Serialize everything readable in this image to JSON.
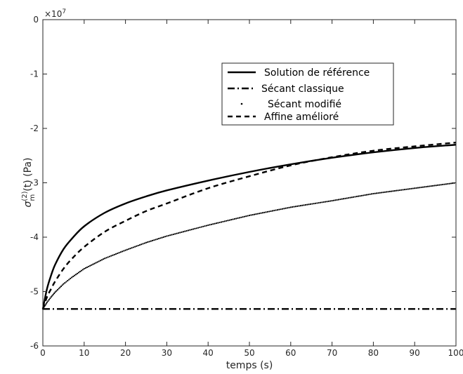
{
  "chart_data": {
    "type": "line",
    "xlabel": "temps (s)",
    "ylabel": {
      "symbol": "σ",
      "superscript": "(2)",
      "subscript": "m",
      "suffix": "(t) (Pa)"
    },
    "exponent_label": "×10",
    "exponent_power": "7",
    "xlim": [
      0,
      100
    ],
    "ylim": [
      -6,
      0
    ],
    "x_ticks": [
      "0",
      "10",
      "20",
      "30",
      "40",
      "50",
      "60",
      "70",
      "80",
      "90",
      "100"
    ],
    "y_ticks": [
      "-6",
      "-5",
      "-4",
      "-3",
      "-2",
      "-1",
      "0"
    ],
    "y_scale_factor": 10000000,
    "grid": false,
    "legend_position": "top-right",
    "x": [
      0,
      1,
      2,
      3,
      5,
      7,
      10,
      15,
      20,
      25,
      30,
      40,
      50,
      60,
      70,
      80,
      90,
      100
    ],
    "series": [
      {
        "name": "Solution de référence",
        "style": "solid",
        "values": [
          -5.32,
          -4.95,
          -4.7,
          -4.5,
          -4.22,
          -4.03,
          -3.8,
          -3.55,
          -3.38,
          -3.25,
          -3.14,
          -2.96,
          -2.8,
          -2.66,
          -2.54,
          -2.44,
          -2.36,
          -2.3
        ]
      },
      {
        "name": "Sécant classique",
        "style": "dashdot",
        "values": [
          -5.32,
          -5.32,
          -5.32,
          -5.32,
          -5.32,
          -5.32,
          -5.32,
          -5.32,
          -5.32,
          -5.32,
          -5.32,
          -5.32,
          -5.32,
          -5.32,
          -5.32,
          -5.32,
          -5.32,
          -5.32
        ]
      },
      {
        "name": "Sécant modifié",
        "style": "dotted",
        "values": [
          -5.32,
          -5.2,
          -5.1,
          -5.01,
          -4.86,
          -4.74,
          -4.58,
          -4.39,
          -4.24,
          -4.1,
          -3.98,
          -3.78,
          -3.6,
          -3.45,
          -3.33,
          -3.2,
          -3.1,
          -3.0
        ]
      },
      {
        "name": "Affine amélioré",
        "style": "dashed",
        "values": [
          -5.32,
          -5.1,
          -4.95,
          -4.81,
          -4.58,
          -4.4,
          -4.18,
          -3.9,
          -3.7,
          -3.52,
          -3.38,
          -3.1,
          -2.88,
          -2.68,
          -2.53,
          -2.41,
          -2.33,
          -2.26
        ]
      }
    ]
  }
}
